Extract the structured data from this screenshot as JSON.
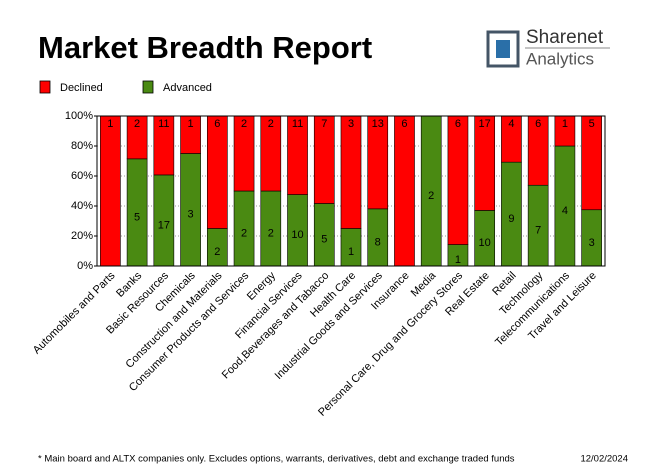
{
  "chart_data": {
    "type": "stacked_percent_bar",
    "title": "Market Breadth Report",
    "brand": [
      "Sharenet",
      "Analytics"
    ],
    "footnote": "* Main board and ALTX companies only. Excludes options, warrants, derivatives, debt and exchange traded funds",
    "date": "12/02/2024",
    "categories": [
      "Automobiles and Parts",
      "Banks",
      "Basic Resources",
      "Chemicals",
      "Construction and Materials",
      "Consumer Products and Services",
      "Energy",
      "Financial Services",
      "Food,Beverages and Tabacco",
      "Health Care",
      "Industrial Goods and Services",
      "Insurance",
      "Media",
      "Personal Care, Drug and Grocery Stores",
      "Real Estate",
      "Retail",
      "Technology",
      "Telecommunications",
      "Travel and Leisure"
    ],
    "series": [
      {
        "name": "Advanced",
        "color": "#4a8a12",
        "values": [
          0,
          5,
          17,
          3,
          2,
          2,
          2,
          10,
          5,
          1,
          8,
          0,
          2,
          1,
          10,
          9,
          7,
          4,
          3
        ]
      },
      {
        "name": "Declined",
        "color": "#ff0000",
        "values": [
          1,
          2,
          11,
          1,
          6,
          2,
          2,
          11,
          7,
          3,
          13,
          6,
          0,
          6,
          17,
          4,
          6,
          1,
          5
        ]
      }
    ],
    "ylim": [
      0,
      100
    ],
    "yticks": [
      {
        "value": 0,
        "label": "0%"
      },
      {
        "value": 20,
        "label": "20%"
      },
      {
        "value": 40,
        "label": "40%"
      },
      {
        "value": 60,
        "label": "60%"
      },
      {
        "value": 80,
        "label": "80%"
      },
      {
        "value": 100,
        "label": "100%"
      }
    ],
    "grid": true
  }
}
